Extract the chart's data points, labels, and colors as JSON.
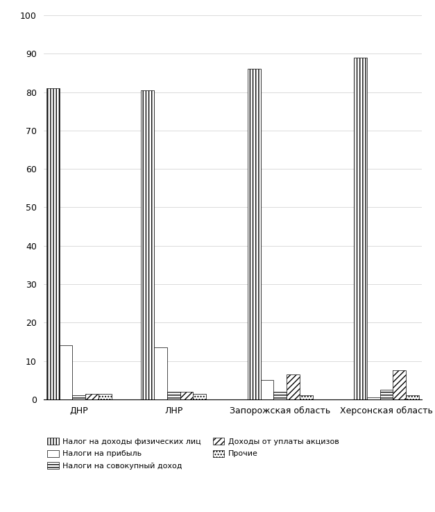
{
  "categories": [
    "ДНР",
    "ЛНР",
    "Запорожская область",
    "Херсонская область"
  ],
  "series": {
    "Налог на доходы физических лиц": [
      81,
      80.5,
      86,
      89
    ],
    "Налоги на прибыль": [
      14,
      13.5,
      5,
      0.5
    ],
    "Налоги на совокупный доход": [
      1,
      2,
      2,
      2.5
    ],
    "Доходы от уплаты акцизов": [
      1.5,
      2,
      6.5,
      7.5
    ],
    "Прочие": [
      1.5,
      1.5,
      1,
      1
    ]
  },
  "hatch_patterns": [
    "||||",
    "~~~~",
    "----",
    "////",
    "...."
  ],
  "ylim": [
    0,
    100
  ],
  "yticks": [
    0,
    10,
    20,
    30,
    40,
    50,
    60,
    70,
    80,
    90,
    100
  ],
  "bar_width": 0.55,
  "group_width": 3.5,
  "background_color": "#ffffff",
  "grid_color": "#cccccc",
  "font_size": 9,
  "legend_ncol": 2,
  "legend_fontsize": 8
}
